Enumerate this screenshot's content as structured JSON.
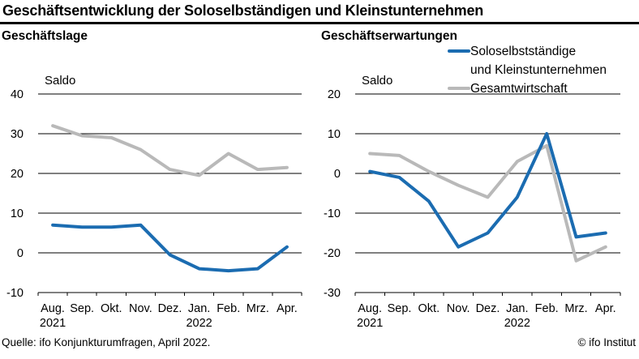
{
  "title": "Geschäftsentwicklung der Soloselbständigen und Kleinstunternehmen",
  "footer": {
    "source": "Quelle: ifo Konjunkturumfragen, April 2022.",
    "copyright": "© ifo Institut"
  },
  "colors": {
    "solo": "#1b6cb1",
    "gesamt": "#b9b9b9"
  },
  "legend": {
    "solo": {
      "line1": "Soloselbstständige",
      "line2": "und Kleinstunternehmen"
    },
    "gesamt": {
      "label": "Gesamtwirtschaft"
    }
  },
  "chart_data": [
    {
      "type": "line",
      "title": "Geschäftslage",
      "ylabel": "Saldo",
      "x": [
        "Aug.",
        "Sep.",
        "Okt.",
        "Nov.",
        "Dez.",
        "Jan.",
        "Feb.",
        "Mrz.",
        "Apr."
      ],
      "year_labels": [
        {
          "text": "2021",
          "month": "Aug."
        },
        {
          "text": "2022",
          "month": "Jan."
        }
      ],
      "ylim": [
        -10,
        40
      ],
      "yticks": [
        40,
        30,
        20,
        10,
        0,
        -10
      ],
      "grid": true,
      "legend_position": "top-right-of-second-panel",
      "series": [
        {
          "name": "Soloselbstständige und Kleinstunternehmen",
          "color_key": "solo",
          "values": [
            7,
            6.5,
            6.5,
            7,
            -0.5,
            -4,
            -4.5,
            -4,
            1.5
          ]
        },
        {
          "name": "Gesamtwirtschaft",
          "color_key": "gesamt",
          "values": [
            32,
            29.5,
            29,
            26,
            21,
            19.5,
            25,
            21,
            21.5
          ]
        }
      ]
    },
    {
      "type": "line",
      "title": "Geschäftserwartungen",
      "ylabel": "Saldo",
      "x": [
        "Aug.",
        "Sep.",
        "Okt.",
        "Nov.",
        "Dez.",
        "Jan.",
        "Feb.",
        "Mrz.",
        "Apr."
      ],
      "year_labels": [
        {
          "text": "2021",
          "month": "Aug."
        },
        {
          "text": "2022",
          "month": "Jan."
        }
      ],
      "ylim": [
        -30,
        20
      ],
      "yticks": [
        20,
        10,
        0,
        -10,
        -20,
        -30
      ],
      "grid": true,
      "series": [
        {
          "name": "Soloselbstständige und Kleinstunternehmen",
          "color_key": "solo",
          "values": [
            0.5,
            -1,
            -7,
            -18.5,
            -15,
            -6,
            10,
            -16,
            -15
          ]
        },
        {
          "name": "Gesamtwirtschaft",
          "color_key": "gesamt",
          "values": [
            5,
            4.5,
            0.5,
            -3,
            -6,
            3,
            7,
            -22,
            -18.5
          ]
        }
      ]
    }
  ]
}
